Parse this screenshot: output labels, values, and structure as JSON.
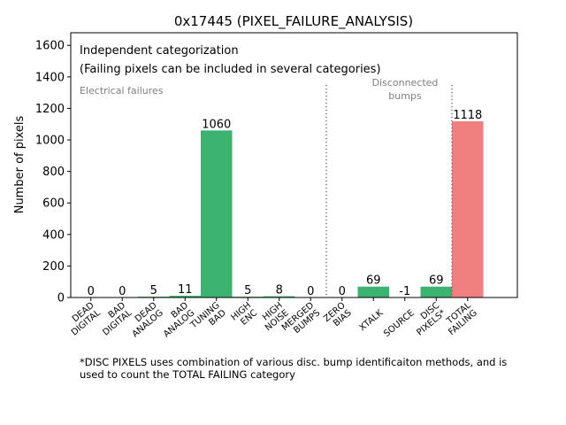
{
  "chart_data": {
    "type": "bar",
    "title": "0x17445 (PIXEL_FAILURE_ANALYSIS)",
    "xlabel": "",
    "ylabel": "Number of pixels",
    "ylim": [
      0,
      1680
    ],
    "yticks": [
      0,
      200,
      400,
      600,
      800,
      1000,
      1200,
      1400,
      1600
    ],
    "grid": false,
    "categories": [
      "DEAD\nDIGITAL",
      "BAD\nDIGITAL",
      "DEAD\nANALOG",
      "BAD\nANALOG",
      "TUNING\nBAD",
      "HIGH\nENC",
      "HIGH\nNOISE",
      "MERGED\nBUMPS",
      "ZERO\nBIAS",
      "XTALK",
      "SOURCE",
      "DISC\nPIXELS*",
      "TOTAL\nFAILING"
    ],
    "values": [
      0,
      0,
      5,
      11,
      1060,
      5,
      8,
      0,
      0,
      69,
      -1,
      69,
      1118
    ],
    "data_labels": [
      "0",
      "0",
      "5",
      "11",
      "1060",
      "5",
      "8",
      "0",
      "0",
      "69",
      "-1",
      "69",
      "1118"
    ],
    "bar_colors": [
      "#3cb371",
      "#3cb371",
      "#3cb371",
      "#3cb371",
      "#3cb371",
      "#3cb371",
      "#3cb371",
      "#3cb371",
      "#3cb371",
      "#3cb371",
      "#3cb371",
      "#3cb371",
      "#f08080"
    ],
    "annotations": {
      "line1": "Independent categorization",
      "line2": "(Failing pixels can be included in several categories)",
      "electrical": "Electrical failures",
      "disconnected_1": "Disconnected",
      "disconnected_2": "bumps"
    },
    "separators_after_index": [
      7,
      11
    ]
  },
  "footnote": {
    "line1": "*DISC PIXELS uses combination of various disc. bump identificaiton methods, and is",
    "line2": "used to count the TOTAL FAILING category"
  }
}
